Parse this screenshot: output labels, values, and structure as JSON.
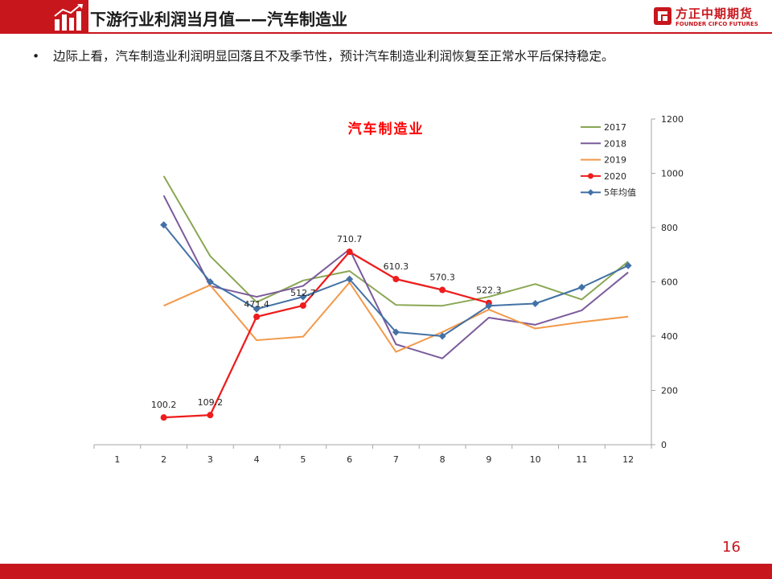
{
  "header": {
    "title": "下游行业利润当月值——汽车制造业",
    "logo_cn": "方正中期期货",
    "logo_en": "FOUNDER CIFCO FUTURES",
    "accent_color": "#c8161d"
  },
  "bullet": {
    "marker": "•",
    "text": "边际上看，汽车制造业利润明显回落且不及季节性，预计汽车制造业利润恢复至正常水平后保持稳定。"
  },
  "chart_data": {
    "type": "line",
    "title": "汽车制造业",
    "title_color": "#ff0000",
    "x": [
      1,
      2,
      3,
      4,
      5,
      6,
      7,
      8,
      9,
      10,
      11,
      12
    ],
    "x_tick_labels": [
      "1",
      "2",
      "3",
      "4",
      "5",
      "6",
      "7",
      "8",
      "9",
      "10",
      "11",
      "12"
    ],
    "y_axis_position": "right",
    "ylim": [
      0,
      1200
    ],
    "y_ticks": [
      0,
      200,
      400,
      600,
      800,
      1000,
      1200
    ],
    "y_tick_labels": [
      "0",
      "200",
      "400",
      "600",
      "800",
      "1000",
      "1200"
    ],
    "grid": false,
    "legend_position": "top-right",
    "series": [
      {
        "name": "2017",
        "color": "#8aa753",
        "marker": "none",
        "values": [
          null,
          990,
          695,
          525,
          605,
          640,
          515,
          512,
          545,
          592,
          535,
          675
        ]
      },
      {
        "name": "2018",
        "color": "#7b5a9b",
        "marker": "none",
        "values": [
          null,
          918,
          585,
          545,
          585,
          720,
          370,
          318,
          468,
          442,
          495,
          635
        ]
      },
      {
        "name": "2019",
        "color": "#f2994a",
        "marker": "none",
        "values": [
          null,
          512,
          588,
          385,
          398,
          598,
          342,
          415,
          498,
          428,
          452,
          472
        ]
      },
      {
        "name": "2020",
        "color": "#ee1c1c",
        "marker": "circle",
        "values": [
          null,
          100.2,
          109.2,
          471.4,
          512.7,
          710.7,
          610.3,
          570.3,
          522.3,
          null,
          null,
          null
        ],
        "data_labels": [
          null,
          "100.2",
          "109.2",
          "471.4",
          "512.7",
          "710.7",
          "610.3",
          "570.3",
          "522.3",
          null,
          null,
          null
        ]
      },
      {
        "name": "5年均值",
        "color": "#4271a5",
        "marker": "diamond",
        "values": [
          null,
          810,
          600,
          500,
          545,
          610,
          415,
          400,
          512,
          520,
          580,
          660
        ]
      }
    ]
  },
  "footer": {
    "page_number": "16"
  }
}
